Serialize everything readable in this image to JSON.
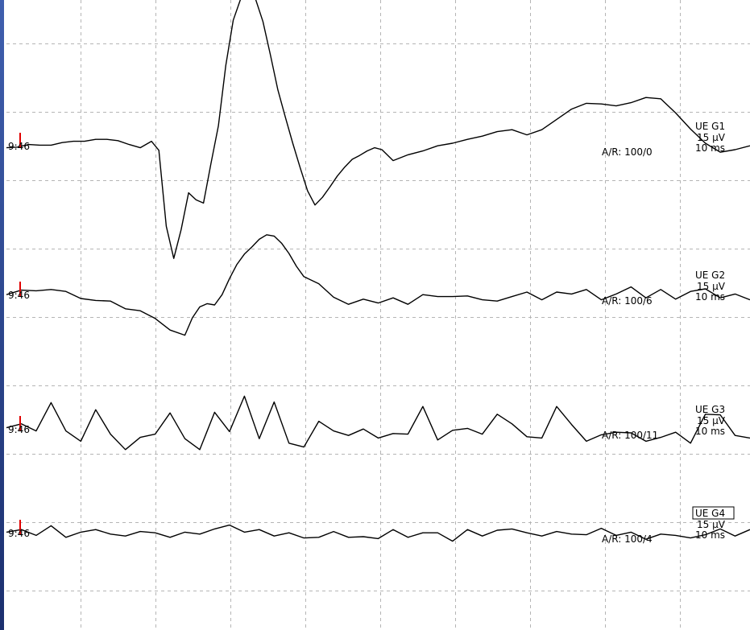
{
  "colors": {
    "background": "#ffffff",
    "grid": "#b5b5b5",
    "trace": "#000000",
    "marker": "#e00000",
    "left_bar_top": "#3f5fae",
    "left_bar_bottom": "#1b2f6e"
  },
  "chart_data": {
    "type": "line",
    "grid": true,
    "x_range_ms": [
      0,
      100
    ],
    "traces": [
      {
        "name": "UE G1",
        "time_label": "9:46",
        "sensitivity": "15 µV",
        "sweep": "10 ms",
        "ar": "A/R: 100/0",
        "selected": false,
        "x": [
          0,
          1.5,
          3,
          4.5,
          6,
          7.5,
          9,
          10.5,
          12,
          13.5,
          15,
          16.5,
          18,
          19.5,
          20.5,
          21.5,
          22.5,
          23.5,
          24.5,
          25.5,
          26.5,
          27.5,
          28.5,
          29.5,
          30.5,
          31.5,
          32.5,
          33.5,
          34.5,
          35.5,
          36.5,
          37.5,
          38.5,
          39.5,
          40.5,
          41.5,
          42.5,
          43.5,
          44.5,
          45.5,
          46.5,
          47.5,
          48.5,
          49.5,
          50.5,
          52,
          54,
          56,
          58,
          60,
          62,
          64,
          66,
          68,
          70,
          72,
          74,
          76,
          78,
          80,
          82,
          84,
          86,
          88,
          90,
          92,
          94,
          96,
          98,
          100
        ],
        "y": [
          -0.2,
          -0.1,
          0.3,
          0.2,
          0.2,
          0.6,
          0.8,
          0.8,
          1.1,
          1.1,
          0.9,
          0.3,
          -0.2,
          0.8,
          -0.6,
          -12.4,
          -17.4,
          -12.9,
          -7.2,
          -8.3,
          -8.8,
          -2.7,
          3.2,
          12.6,
          19.6,
          22.9,
          24,
          22.9,
          19.4,
          14.2,
          8.8,
          4.6,
          0.5,
          -3.3,
          -6.9,
          -9.1,
          -7.9,
          -6.3,
          -4.6,
          -3.2,
          -2,
          -1.4,
          -0.7,
          -0.2,
          -0.5,
          -2.2,
          -1.3,
          -0.7,
          0.1,
          0.5,
          1.1,
          1.6,
          2.3,
          2.6,
          1.8,
          2.6,
          4.2,
          5.8,
          6.7,
          6.6,
          6.3,
          6.8,
          7.6,
          7.4,
          5.2,
          2.7,
          0.5,
          -0.9,
          -0.5,
          0.1
        ]
      },
      {
        "name": "UE G2",
        "time_label": "9:46",
        "sensitivity": "15 µV",
        "sweep": "10 ms",
        "ar": "A/R: 100/6",
        "selected": false,
        "x": [
          0,
          2,
          4,
          6,
          8,
          10,
          12,
          14,
          16,
          18,
          20,
          22,
          24,
          25,
          26,
          27,
          28,
          29,
          30,
          31,
          32,
          33,
          34,
          35,
          36,
          37,
          38,
          39,
          40,
          42,
          44,
          46,
          48,
          50,
          52,
          54,
          56,
          58,
          60,
          62,
          64,
          66,
          68,
          70,
          72,
          74,
          76,
          78,
          80,
          82,
          84,
          86,
          88,
          90,
          92,
          94,
          96,
          98,
          100
        ],
        "y": [
          0.1,
          0.8,
          0.7,
          0.9,
          0.6,
          -0.5,
          -0.8,
          -0.9,
          -2.1,
          -2.4,
          -3.6,
          -5.4,
          -6.2,
          -3.5,
          -1.8,
          -1.3,
          -1.5,
          0.1,
          2.6,
          4.8,
          6.4,
          7.5,
          8.7,
          9.4,
          9.2,
          8.1,
          6.5,
          4.5,
          2.9,
          1.8,
          -0.3,
          -1.4,
          -0.6,
          -1.2,
          -0.4,
          -1.4,
          0.1,
          -0.2,
          -0.2,
          -0.1,
          -0.7,
          -0.9,
          -0.2,
          0.5,
          -0.7,
          0.5,
          0.2,
          0.9,
          -0.7,
          0.2,
          1.3,
          -0.4,
          0.9,
          -0.6,
          0.6,
          1,
          -0.4,
          0.2,
          -0.7
        ]
      },
      {
        "name": "UE G3",
        "time_label": "9:46",
        "sensitivity": "15 µV",
        "sweep": "10 ms",
        "ar": "A/R: 100/11",
        "selected": false,
        "x": [
          0,
          2,
          4,
          6,
          8,
          10,
          12,
          14,
          16,
          18,
          20,
          22,
          24,
          26,
          28,
          30,
          32,
          34,
          36,
          38,
          40,
          42,
          44,
          46,
          48,
          50,
          52,
          54,
          56,
          58,
          60,
          62,
          64,
          66,
          68,
          70,
          72,
          74,
          76,
          78,
          80,
          82,
          84,
          86,
          88,
          90,
          92,
          94,
          96,
          98,
          100
        ],
        "y": [
          0.3,
          0.9,
          -0.2,
          4.2,
          -0.2,
          -1.8,
          3.1,
          -0.7,
          -3.1,
          -1.2,
          -0.7,
          2.6,
          -1.4,
          -3.1,
          2.7,
          -0.3,
          5.2,
          -1.4,
          4.3,
          -2.1,
          -2.7,
          1.3,
          -0.2,
          -0.9,
          0.1,
          -1.3,
          -0.6,
          -0.7,
          3.6,
          -1.6,
          -0.1,
          0.2,
          -0.7,
          2.4,
          0.9,
          -1.1,
          -1.3,
          3.6,
          0.8,
          -1.8,
          -0.8,
          -0.4,
          -0.5,
          -1.8,
          -1.2,
          -0.4,
          -2.1,
          2.4,
          2.3,
          -0.9,
          -1.3
        ]
      },
      {
        "name": "UE G4",
        "time_label": "9:46",
        "sensitivity": "15 µV",
        "sweep": "10 ms",
        "ar": "A/R: 100/4",
        "selected": true,
        "x": [
          0,
          2,
          4,
          6,
          8,
          10,
          12,
          14,
          16,
          18,
          20,
          22,
          24,
          26,
          28,
          30,
          32,
          34,
          36,
          38,
          40,
          42,
          44,
          46,
          48,
          50,
          52,
          54,
          56,
          58,
          60,
          62,
          64,
          66,
          68,
          70,
          72,
          74,
          76,
          78,
          80,
          82,
          84,
          86,
          88,
          90,
          92,
          94,
          96,
          98,
          100
        ],
        "y": [
          0.2,
          0.6,
          -0.3,
          1.2,
          -0.6,
          0.2,
          0.6,
          -0.1,
          -0.4,
          0.3,
          0.1,
          -0.6,
          0.2,
          -0.1,
          0.7,
          1.3,
          0.2,
          0.6,
          -0.4,
          0.1,
          -0.7,
          -0.6,
          0.3,
          -0.6,
          -0.5,
          -0.8,
          0.6,
          -0.6,
          0.1,
          0.1,
          -1.2,
          0.6,
          -0.4,
          0.5,
          0.7,
          0.1,
          -0.4,
          0.3,
          -0.1,
          -0.2,
          0.8,
          -0.3,
          0.2,
          -0.9,
          -0.1,
          -0.3,
          -0.7,
          -0.2,
          0.7,
          -0.4,
          0.6
        ]
      }
    ]
  }
}
